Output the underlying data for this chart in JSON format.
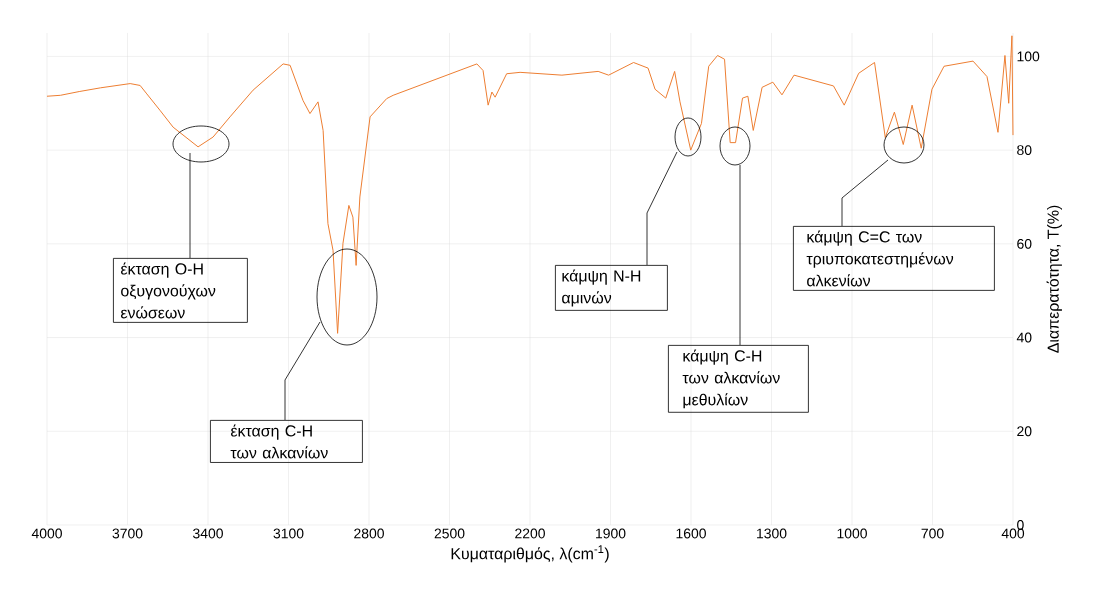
{
  "chart_data": {
    "type": "line",
    "xlabel": "Κυματαριθμός, λ(cm$^{-1}$)",
    "ylabel": "Διαπερατότητα, T(%)",
    "x": [
      4000,
      3950,
      3880,
      3800,
      3690,
      3653,
      3628,
      3579,
      3530,
      3437,
      3381,
      3318,
      3232,
      3120,
      3094,
      3046,
      3020,
      2990,
      2971,
      2953,
      2934,
      2917,
      2897,
      2875,
      2860,
      2848,
      2834,
      2796,
      2734,
      2710,
      2398,
      2375,
      2356,
      2342,
      2330,
      2287,
      2237,
      2081,
      1946,
      1907,
      1814,
      1760,
      1734,
      1694,
      1661,
      1641,
      1601,
      1561,
      1534,
      1501,
      1475,
      1454,
      1434,
      1408,
      1388,
      1368,
      1335,
      1295,
      1261,
      1216,
      1069,
      1029,
      975,
      916,
      876,
      842,
      809,
      776,
      742,
      702,
      657,
      549,
      497,
      456,
      430,
      416,
      404,
      400
    ],
    "series": [
      {
        "color": "#ed7d31",
        "values": [
          91.5,
          91.7,
          92.5,
          93.3,
          94.2,
          93.8,
          92.0,
          88.5,
          84.9,
          80.7,
          82.8,
          87.1,
          92.8,
          98.4,
          98.1,
          90.6,
          87.8,
          90.3,
          84.2,
          64.3,
          58.6,
          40.9,
          60.1,
          68.2,
          65.7,
          55.4,
          70.0,
          87.1,
          91.0,
          91.7,
          98.4,
          97.0,
          89.6,
          92.4,
          91.3,
          96.3,
          96.6,
          96.0,
          96.8,
          96.0,
          98.7,
          97.5,
          93.0,
          91.1,
          96.8,
          90.3,
          80.0,
          85.7,
          97.9,
          100.2,
          99.4,
          81.6,
          81.6,
          91.1,
          91.5,
          84.2,
          93.4,
          94.5,
          91.8,
          96.0,
          93.7,
          89.6,
          96.4,
          98.7,
          82.7,
          88.1,
          81.2,
          89.6,
          80.4,
          93.0,
          97.9,
          99.0,
          95.7,
          83.8,
          100.2,
          90.0,
          104.4,
          83.2
        ]
      }
    ],
    "xlim": [
      4000,
      400
    ],
    "ylim": [
      0,
      105
    ],
    "xticks": [
      4000,
      3700,
      3400,
      3100,
      2800,
      2500,
      2200,
      1900,
      1600,
      1300,
      1000,
      700,
      400
    ],
    "yticks": [
      0,
      20,
      40,
      60,
      80,
      100
    ],
    "grid": true,
    "marker": "none",
    "line_style": "solid",
    "annotations": [
      "έκταση O-H οξυγονούχων ενώσεων",
      "έκταση C-H των αλκανίων",
      "κάμψη N-H αμινών",
      "κάμψη C-H των αλκανίων μεθυλίων",
      "κάμψη C=C των τριυποκατεστημένων αλκενίων"
    ]
  }
}
